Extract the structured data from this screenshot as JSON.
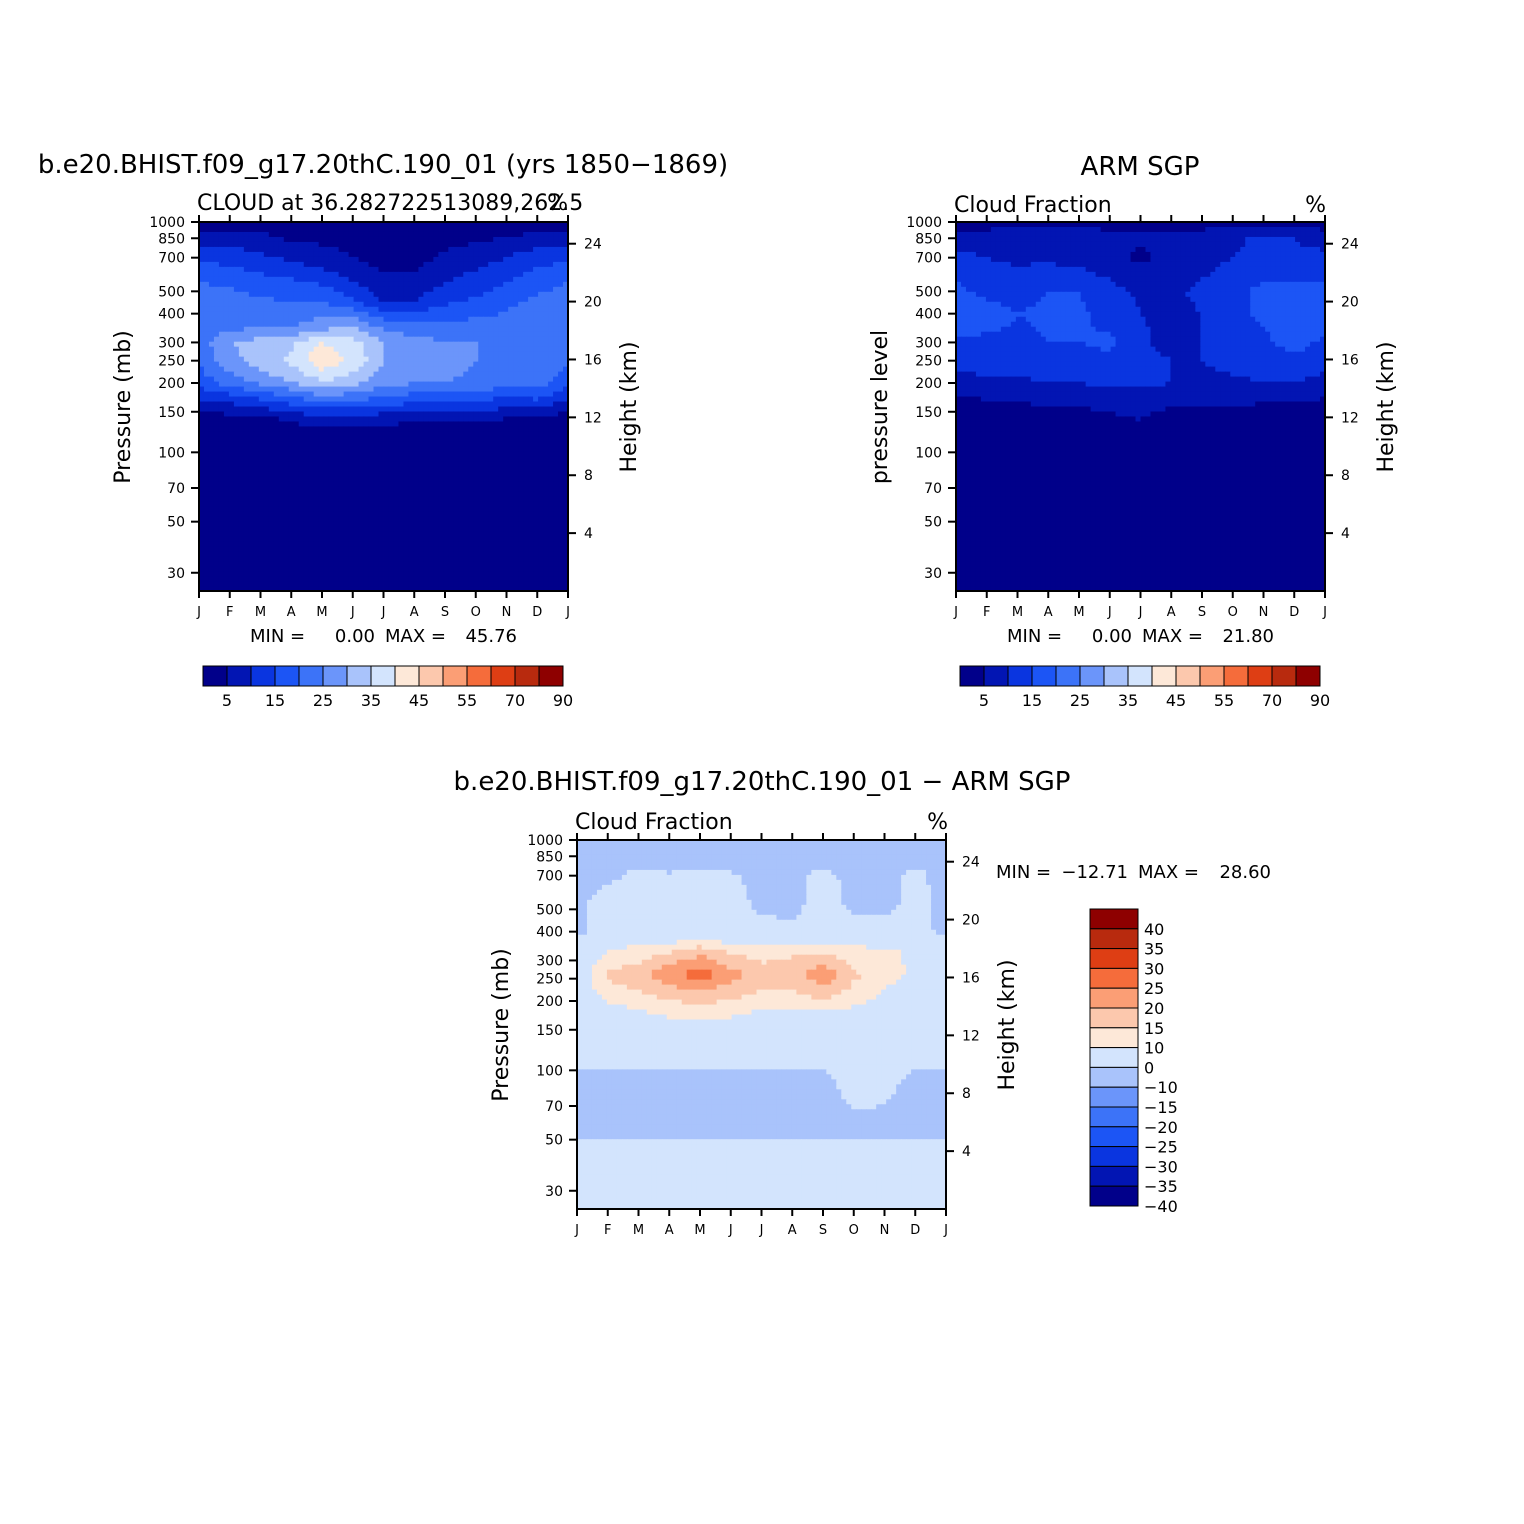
{
  "chart_data": [
    {
      "type": "heatmap",
      "id": "model",
      "title": "b.e20.BHIST.f09_g17.20thC.190_01 (yrs 1850−1869)",
      "subtitle_left": "CLOUD at 36.282722513089,262.5",
      "subtitle_right": "%",
      "ylabel": "Pressure (mb)",
      "ylabel_right": "Height (km)",
      "x_ticks": [
        "J",
        "F",
        "M",
        "A",
        "M",
        "J",
        "J",
        "A",
        "S",
        "O",
        "N",
        "D",
        "J"
      ],
      "y_ticks": [
        30,
        50,
        70,
        100,
        150,
        200,
        250,
        300,
        400,
        500,
        700,
        850,
        1000
      ],
      "y_right_ticks": [
        24,
        20,
        16,
        12,
        8,
        4
      ],
      "y_log_scale": true,
      "ylim": [
        1000,
        25
      ],
      "min_label": "MIN =",
      "min_value": "0.00",
      "max_label": "MAX =",
      "max_value": "45.76",
      "levels": [
        0,
        5,
        10,
        15,
        20,
        25,
        30,
        35,
        40,
        45,
        50,
        55,
        60,
        70,
        80,
        90,
        100
      ],
      "colorbar_labels": [
        "5",
        "15",
        "25",
        "35",
        "45",
        "55",
        "70",
        "90"
      ],
      "palette": [
        "#01008a",
        "#0215b3",
        "#0a35e0",
        "#1c55f5",
        "#3c73f8",
        "#6b95fa",
        "#a9c3fb",
        "#d3e4fd",
        "#fde8d8",
        "#fcc8ad",
        "#fb9e75",
        "#f56c3b",
        "#de3e14",
        "#b82a0e",
        "#8e0000"
      ],
      "profiles": [
        {
          "p": 1000,
          "v": [
            2,
            2,
            2,
            2,
            2,
            2,
            2,
            2,
            2,
            2,
            2,
            2,
            2
          ]
        },
        {
          "p": 900,
          "v": [
            6,
            6,
            5,
            3,
            3,
            3,
            2,
            2,
            2,
            3,
            4,
            5,
            6
          ]
        },
        {
          "p": 700,
          "v": [
            14,
            13,
            11,
            9,
            7,
            5,
            3,
            3,
            6,
            8,
            10,
            13,
            14
          ]
        },
        {
          "p": 550,
          "v": [
            20,
            19,
            17,
            16,
            14,
            10,
            6,
            6,
            10,
            12,
            15,
            18,
            20
          ]
        },
        {
          "p": 450,
          "v": [
            22,
            22,
            21,
            20,
            20,
            16,
            10,
            10,
            14,
            16,
            19,
            21,
            22
          ]
        },
        {
          "p": 350,
          "v": [
            23,
            24,
            24,
            25,
            28,
            30,
            24,
            22,
            22,
            22,
            22,
            23,
            23
          ]
        },
        {
          "p": 300,
          "v": [
            22,
            30,
            32,
            34,
            40,
            37,
            30,
            27,
            25,
            25,
            22,
            24,
            22
          ]
        },
        {
          "p": 250,
          "v": [
            21,
            28,
            33,
            36,
            44,
            39,
            30,
            27,
            27,
            25,
            22,
            25,
            21
          ]
        },
        {
          "p": 200,
          "v": [
            17,
            22,
            26,
            30,
            34,
            32,
            27,
            25,
            25,
            24,
            22,
            23,
            17
          ]
        },
        {
          "p": 170,
          "v": [
            10,
            12,
            15,
            18,
            22,
            21,
            19,
            17,
            17,
            16,
            14,
            15,
            10
          ]
        },
        {
          "p": 140,
          "v": [
            2,
            3,
            4,
            6,
            8,
            8,
            7,
            6,
            6,
            6,
            5,
            5,
            2
          ]
        },
        {
          "p": 120,
          "v": [
            1,
            1,
            1,
            2,
            2,
            2,
            2,
            2,
            2,
            2,
            1,
            1,
            1
          ]
        },
        {
          "p": 25,
          "v": [
            0,
            0,
            0,
            0,
            0,
            0,
            0,
            0,
            0,
            0,
            0,
            0,
            0
          ]
        }
      ]
    },
    {
      "type": "heatmap",
      "id": "obs",
      "title": "ARM SGP",
      "subtitle_left": "Cloud Fraction",
      "subtitle_right": "%",
      "ylabel": "pressure level",
      "ylabel_right": "Height (km)",
      "x_ticks": [
        "J",
        "F",
        "M",
        "A",
        "M",
        "J",
        "J",
        "A",
        "S",
        "O",
        "N",
        "D",
        "J"
      ],
      "y_ticks": [
        30,
        50,
        70,
        100,
        150,
        200,
        250,
        300,
        400,
        500,
        700,
        850,
        1000
      ],
      "y_right_ticks": [
        24,
        20,
        16,
        12,
        8,
        4
      ],
      "y_log_scale": true,
      "ylim": [
        1000,
        25
      ],
      "min_label": "MIN =",
      "min_value": "0.00",
      "max_label": "MAX =",
      "max_value": "21.80",
      "levels": [
        0,
        5,
        10,
        15,
        20,
        25,
        30,
        35,
        40,
        45,
        50,
        55,
        60,
        70,
        80,
        90,
        100
      ],
      "colorbar_labels": [
        "5",
        "15",
        "25",
        "35",
        "45",
        "55",
        "70",
        "90"
      ],
      "palette": [
        "#01008a",
        "#0215b3",
        "#0a35e0",
        "#1c55f5",
        "#3c73f8",
        "#6b95fa",
        "#a9c3fb",
        "#d3e4fd",
        "#fde8d8",
        "#fcc8ad",
        "#fb9e75",
        "#f56c3b",
        "#de3e14",
        "#b82a0e",
        "#8e0000"
      ],
      "profiles": [
        {
          "p": 1000,
          "v": [
            3,
            3,
            3,
            3,
            3,
            3,
            3,
            3,
            3,
            3,
            3,
            3,
            3
          ]
        },
        {
          "p": 850,
          "v": [
            7,
            7,
            10,
            9,
            8,
            7,
            6,
            6,
            7,
            9,
            11,
            10,
            7
          ]
        },
        {
          "p": 700,
          "v": [
            12,
            10,
            9,
            9,
            8,
            6,
            4,
            6,
            8,
            10,
            12,
            11,
            12
          ]
        },
        {
          "p": 500,
          "v": [
            16,
            14,
            13,
            15,
            15,
            12,
            9,
            9,
            11,
            14,
            16,
            17,
            16
          ]
        },
        {
          "p": 400,
          "v": [
            20,
            17,
            15,
            16,
            16,
            13,
            10,
            9,
            10,
            14,
            16,
            19,
            20
          ]
        },
        {
          "p": 300,
          "v": [
            14,
            14,
            14,
            15,
            15,
            16,
            11,
            8,
            10,
            13,
            14,
            17,
            14
          ]
        },
        {
          "p": 250,
          "v": [
            12,
            12,
            12,
            13,
            13,
            14,
            12,
            10,
            10,
            12,
            12,
            14,
            12
          ]
        },
        {
          "p": 200,
          "v": [
            8,
            9,
            9,
            10,
            10,
            11,
            11,
            10,
            8,
            9,
            10,
            10,
            8
          ]
        },
        {
          "p": 150,
          "v": [
            2,
            2,
            3,
            4,
            4,
            5,
            6,
            4,
            4,
            4,
            3,
            3,
            2
          ]
        },
        {
          "p": 100,
          "v": [
            1,
            1,
            1,
            1,
            1,
            1,
            1,
            1,
            1,
            1,
            1,
            1,
            1
          ]
        },
        {
          "p": 25,
          "v": [
            0,
            0,
            0,
            0,
            0,
            0,
            0,
            0,
            0,
            0,
            0,
            0,
            0
          ]
        }
      ]
    },
    {
      "type": "heatmap",
      "id": "diff",
      "title": "b.e20.BHIST.f09_g17.20thC.190_01 − ARM SGP",
      "subtitle_left": "Cloud Fraction",
      "subtitle_right": "%",
      "ylabel": "Pressure (mb)",
      "ylabel_right": "Height (km)",
      "x_ticks": [
        "J",
        "F",
        "M",
        "A",
        "M",
        "J",
        "J",
        "A",
        "S",
        "O",
        "N",
        "D",
        "J"
      ],
      "y_ticks": [
        30,
        50,
        70,
        100,
        150,
        200,
        250,
        300,
        400,
        500,
        700,
        850,
        1000
      ],
      "y_right_ticks": [
        24,
        20,
        16,
        12,
        8,
        4
      ],
      "y_log_scale": true,
      "ylim": [
        1000,
        25
      ],
      "min_label": "MIN =",
      "min_value": "−12.71",
      "max_label": "MAX =",
      "max_value": "28.60",
      "levels": [
        -40,
        -35,
        -30,
        -25,
        -20,
        -15,
        -10,
        0,
        10,
        15,
        20,
        25,
        30,
        35,
        40
      ],
      "colorbar_labels": [
        "40",
        "35",
        "30",
        "25",
        "20",
        "15",
        "10",
        "0",
        "−10",
        "−15",
        "−20",
        "−25",
        "−30",
        "−35",
        "−40"
      ],
      "palette": [
        "#01008a",
        "#0215b3",
        "#0a35e0",
        "#1c55f5",
        "#3c73f8",
        "#6b95fa",
        "#a9c3fb",
        "#d3e4fd",
        "#fde8d8",
        "#fcc8ad",
        "#fb9e75",
        "#f56c3b",
        "#de3e14",
        "#b82a0e",
        "#8e0000"
      ],
      "profiles": [
        {
          "p": 1000,
          "v": [
            -2,
            -2,
            -2,
            -2,
            -2,
            -2,
            -2,
            -2,
            -2,
            -2,
            -2,
            -2,
            -2
          ]
        },
        {
          "p": 850,
          "v": [
            -2,
            -2,
            -3,
            -10,
            -4,
            -3,
            -2,
            -3,
            -4,
            -10,
            -4,
            -3,
            -2
          ]
        },
        {
          "p": 700,
          "v": [
            -3,
            -2,
            2,
            2,
            3,
            1,
            -3,
            -2,
            2,
            -2,
            -3,
            2,
            -3
          ]
        },
        {
          "p": 550,
          "v": [
            -2,
            3,
            4,
            3,
            4,
            3,
            -2,
            -3,
            3,
            -2,
            -3,
            2,
            -2
          ]
        },
        {
          "p": 400,
          "v": [
            -2,
            4,
            5,
            4,
            4,
            4,
            2,
            2,
            4,
            3,
            3,
            3,
            -2
          ]
        },
        {
          "p": 330,
          "v": [
            5,
            10,
            12,
            14,
            18,
            14,
            12,
            14,
            14,
            12,
            11,
            9,
            5
          ]
        },
        {
          "p": 260,
          "v": [
            6,
            16,
            18,
            24,
            28,
            22,
            18,
            18,
            24,
            16,
            12,
            9,
            6
          ]
        },
        {
          "p": 210,
          "v": [
            5,
            12,
            14,
            16,
            18,
            16,
            14,
            14,
            16,
            13,
            9,
            7,
            5
          ]
        },
        {
          "p": 170,
          "v": [
            4,
            6,
            8,
            10,
            11,
            10,
            8,
            8,
            8,
            7,
            5,
            5,
            4
          ]
        },
        {
          "p": 110,
          "v": [
            2,
            2,
            2,
            2,
            2,
            2,
            2,
            2,
            2,
            3,
            3,
            2,
            2
          ]
        },
        {
          "p": 90,
          "v": [
            -2,
            -2,
            -2,
            -2,
            -2,
            -2,
            -2,
            -2,
            -2,
            3,
            2,
            -2,
            -2
          ]
        },
        {
          "p": 55,
          "v": [
            -2,
            -2,
            -2,
            -2,
            -2,
            -2,
            -2,
            -2,
            -2,
            -2,
            -2,
            -2,
            -2
          ]
        },
        {
          "p": 45,
          "v": [
            2,
            2,
            2,
            2,
            2,
            2,
            2,
            2,
            2,
            2,
            2,
            2,
            2
          ]
        },
        {
          "p": 25,
          "v": [
            2,
            2,
            2,
            2,
            2,
            2,
            2,
            2,
            2,
            2,
            2,
            2,
            2
          ]
        }
      ]
    }
  ]
}
